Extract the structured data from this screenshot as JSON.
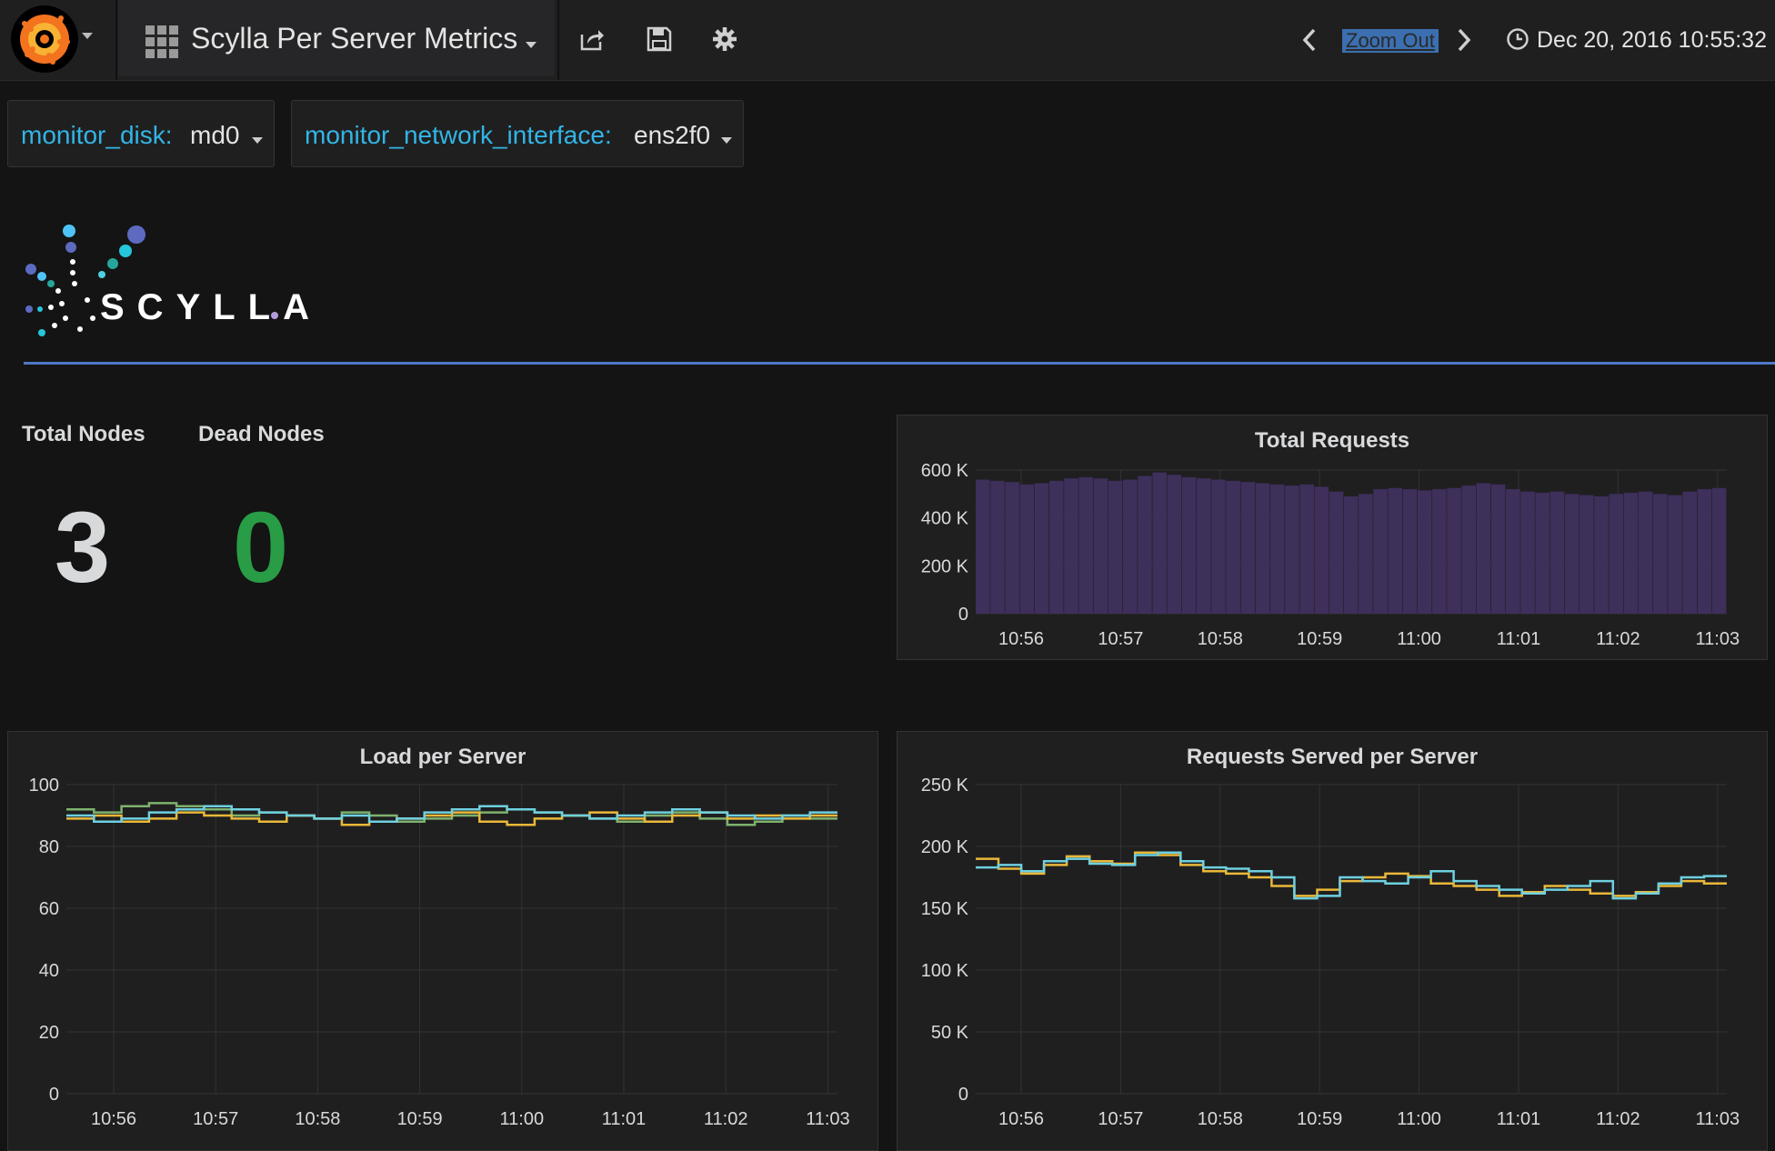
{
  "header": {
    "dashboard_title": "Scylla Per Server Metrics",
    "zoom_out_label": "Zoom Out",
    "time_range": "Dec 20, 2016 10:55:32"
  },
  "variables": [
    {
      "label": "monitor_disk:",
      "value": "md0"
    },
    {
      "label": "monitor_network_interface:",
      "value": "ens2f0"
    }
  ],
  "logo": {
    "text": "SCYLLA"
  },
  "stats": [
    {
      "label": "Total Nodes",
      "value": "3",
      "color": "#d8d9da"
    },
    {
      "label": "Dead Nodes",
      "value": "0",
      "color": "#299c46"
    }
  ],
  "colors": {
    "accent": "#33b5e5",
    "ok": "#299c46",
    "series_green": "#7eb26d",
    "series_yellow": "#eab839",
    "series_cyan": "#6ed0e0",
    "bars": "#3e2f5b"
  },
  "chart_data": [
    {
      "type": "bar",
      "title": "Total Requests",
      "x_ticks": [
        "10:56",
        "10:57",
        "10:58",
        "10:59",
        "11:00",
        "11:01",
        "11:02",
        "11:03"
      ],
      "y_ticks": [
        "0",
        "200 K",
        "400 K",
        "600 K"
      ],
      "ylim": [
        0,
        600000
      ],
      "grid": true,
      "series": [
        {
          "values": [
            560000,
            555000,
            550000,
            540000,
            545000,
            555000,
            565000,
            570000,
            565000,
            555000,
            560000,
            575000,
            590000,
            580000,
            570000,
            565000,
            560000,
            555000,
            550000,
            545000,
            540000,
            535000,
            540000,
            530000,
            510000,
            490000,
            500000,
            520000,
            525000,
            520000,
            515000,
            520000,
            525000,
            535000,
            545000,
            540000,
            520000,
            510000,
            505000,
            510000,
            500000,
            495000,
            490000,
            500000,
            505000,
            510000,
            500000,
            495000,
            510000,
            520000,
            525000
          ]
        }
      ]
    },
    {
      "type": "line",
      "title": "Load per Server",
      "x_ticks": [
        "10:56",
        "10:57",
        "10:58",
        "10:59",
        "11:00",
        "11:01",
        "11:02",
        "11:03"
      ],
      "y_ticks": [
        "0",
        "20",
        "40",
        "60",
        "80",
        "100"
      ],
      "ylim": [
        0,
        100
      ],
      "grid": true,
      "series": [
        {
          "color": "#7eb26d",
          "values": [
            92,
            91,
            93,
            94,
            93,
            92,
            90,
            91,
            90,
            89,
            91,
            90,
            88,
            89,
            90,
            91,
            92,
            91,
            90,
            89,
            88,
            90,
            91,
            89,
            87,
            88,
            90,
            89
          ]
        },
        {
          "color": "#eab839",
          "values": [
            89,
            90,
            88,
            89,
            91,
            90,
            89,
            88,
            90,
            89,
            87,
            88,
            89,
            90,
            91,
            88,
            87,
            89,
            90,
            91,
            89,
            88,
            90,
            91,
            89,
            90,
            89,
            90
          ]
        },
        {
          "color": "#6ed0e0",
          "values": [
            90,
            88,
            89,
            91,
            92,
            93,
            92,
            91,
            90,
            89,
            90,
            88,
            89,
            91,
            92,
            93,
            92,
            91,
            90,
            89,
            90,
            91,
            92,
            91,
            90,
            89,
            90,
            91
          ]
        }
      ]
    },
    {
      "type": "line",
      "title": "Requests Served per Server",
      "x_ticks": [
        "10:56",
        "10:57",
        "10:58",
        "10:59",
        "11:00",
        "11:01",
        "11:02",
        "11:03"
      ],
      "y_ticks": [
        "0",
        "50 K",
        "100 K",
        "150 K",
        "200 K",
        "250 K"
      ],
      "ylim": [
        0,
        250000
      ],
      "grid": true,
      "series": [
        {
          "color": "#eab839",
          "values": [
            190000,
            182000,
            178000,
            185000,
            192000,
            188000,
            186000,
            195000,
            193000,
            185000,
            180000,
            178000,
            175000,
            168000,
            160000,
            165000,
            172000,
            175000,
            178000,
            176000,
            170000,
            168000,
            165000,
            160000,
            163000,
            168000,
            165000,
            162000,
            160000,
            163000,
            168000,
            172000,
            170000
          ]
        },
        {
          "color": "#6ed0e0",
          "values": [
            183000,
            185000,
            180000,
            188000,
            190000,
            186000,
            185000,
            193000,
            195000,
            188000,
            183000,
            182000,
            180000,
            175000,
            158000,
            160000,
            175000,
            172000,
            170000,
            175000,
            180000,
            172000,
            168000,
            165000,
            162000,
            165000,
            168000,
            172000,
            158000,
            162000,
            170000,
            175000,
            176000
          ]
        }
      ]
    }
  ]
}
